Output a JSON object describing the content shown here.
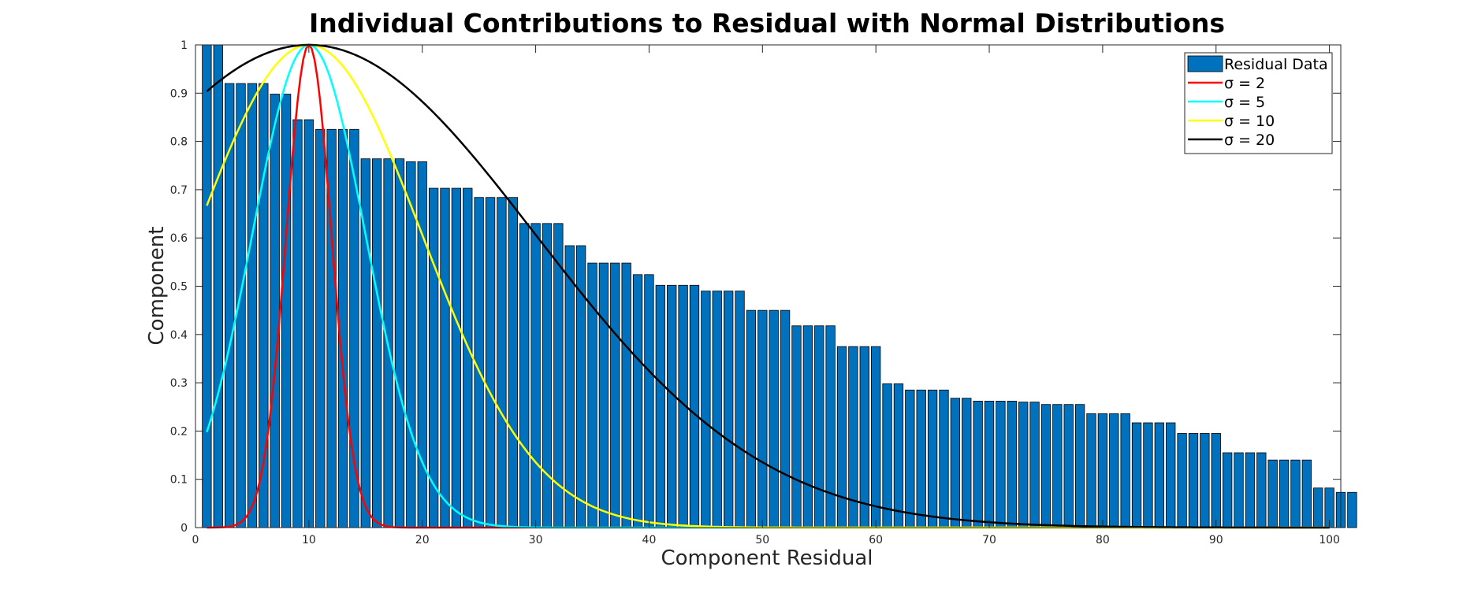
{
  "chart_data": {
    "type": "bar",
    "title": "Individual Contributions to Residual with Normal Distributions",
    "xlabel": "Component Residual",
    "ylabel": "Component",
    "xlim": [
      0,
      101
    ],
    "ylim": [
      0,
      1
    ],
    "xticks": [
      0,
      10,
      20,
      30,
      40,
      50,
      60,
      70,
      80,
      90,
      100
    ],
    "xtick_labels": [
      "0",
      "10",
      "20",
      "30",
      "40",
      "50",
      "60",
      "70",
      "80",
      "90",
      "100"
    ],
    "yticks": [
      0,
      0.1,
      0.2,
      0.3,
      0.4,
      0.5,
      0.6,
      0.7,
      0.8,
      0.9,
      1
    ],
    "ytick_labels": [
      "0",
      "0.1",
      "0.2",
      "0.3",
      "0.4",
      "0.5",
      "0.6",
      "0.7",
      "0.8",
      "0.9",
      "1"
    ],
    "grid": false,
    "legend_position": "top-right",
    "bar_series": {
      "name": "Residual Data",
      "color": "#0072BD",
      "x_start": 1,
      "values": [
        1,
        1,
        0.92,
        0.92,
        0.92,
        0.92,
        0.898,
        0.898,
        0.845,
        0.845,
        0.825,
        0.825,
        0.825,
        0.825,
        0.764,
        0.764,
        0.764,
        0.764,
        0.758,
        0.758,
        0.703,
        0.703,
        0.703,
        0.703,
        0.684,
        0.684,
        0.684,
        0.684,
        0.63,
        0.63,
        0.63,
        0.63,
        0.584,
        0.584,
        0.548,
        0.548,
        0.548,
        0.548,
        0.524,
        0.524,
        0.502,
        0.502,
        0.502,
        0.502,
        0.49,
        0.49,
        0.49,
        0.49,
        0.45,
        0.45,
        0.45,
        0.45,
        0.418,
        0.418,
        0.418,
        0.418,
        0.375,
        0.375,
        0.375,
        0.375,
        0.298,
        0.298,
        0.285,
        0.285,
        0.285,
        0.285,
        0.268,
        0.268,
        0.262,
        0.262,
        0.262,
        0.262,
        0.26,
        0.26,
        0.255,
        0.255,
        0.255,
        0.255,
        0.236,
        0.236,
        0.236,
        0.236,
        0.217,
        0.217,
        0.217,
        0.217,
        0.195,
        0.195,
        0.195,
        0.195,
        0.155,
        0.155,
        0.155,
        0.155,
        0.14,
        0.14,
        0.14,
        0.14,
        0.082,
        0.082,
        0.073,
        0.073
      ]
    },
    "curve_series": [
      {
        "name": "σ = 2",
        "color": "#FF0000",
        "sigma": 2,
        "mu": 10
      },
      {
        "name": "σ = 5",
        "color": "#00FFFF",
        "sigma": 5,
        "mu": 10
      },
      {
        "name": "σ = 10",
        "color": "#FFFF00",
        "sigma": 10,
        "mu": 10
      },
      {
        "name": "σ = 20",
        "color": "#000000",
        "sigma": 20,
        "mu": 10
      }
    ],
    "curve_x_range": [
      1,
      100
    ]
  }
}
